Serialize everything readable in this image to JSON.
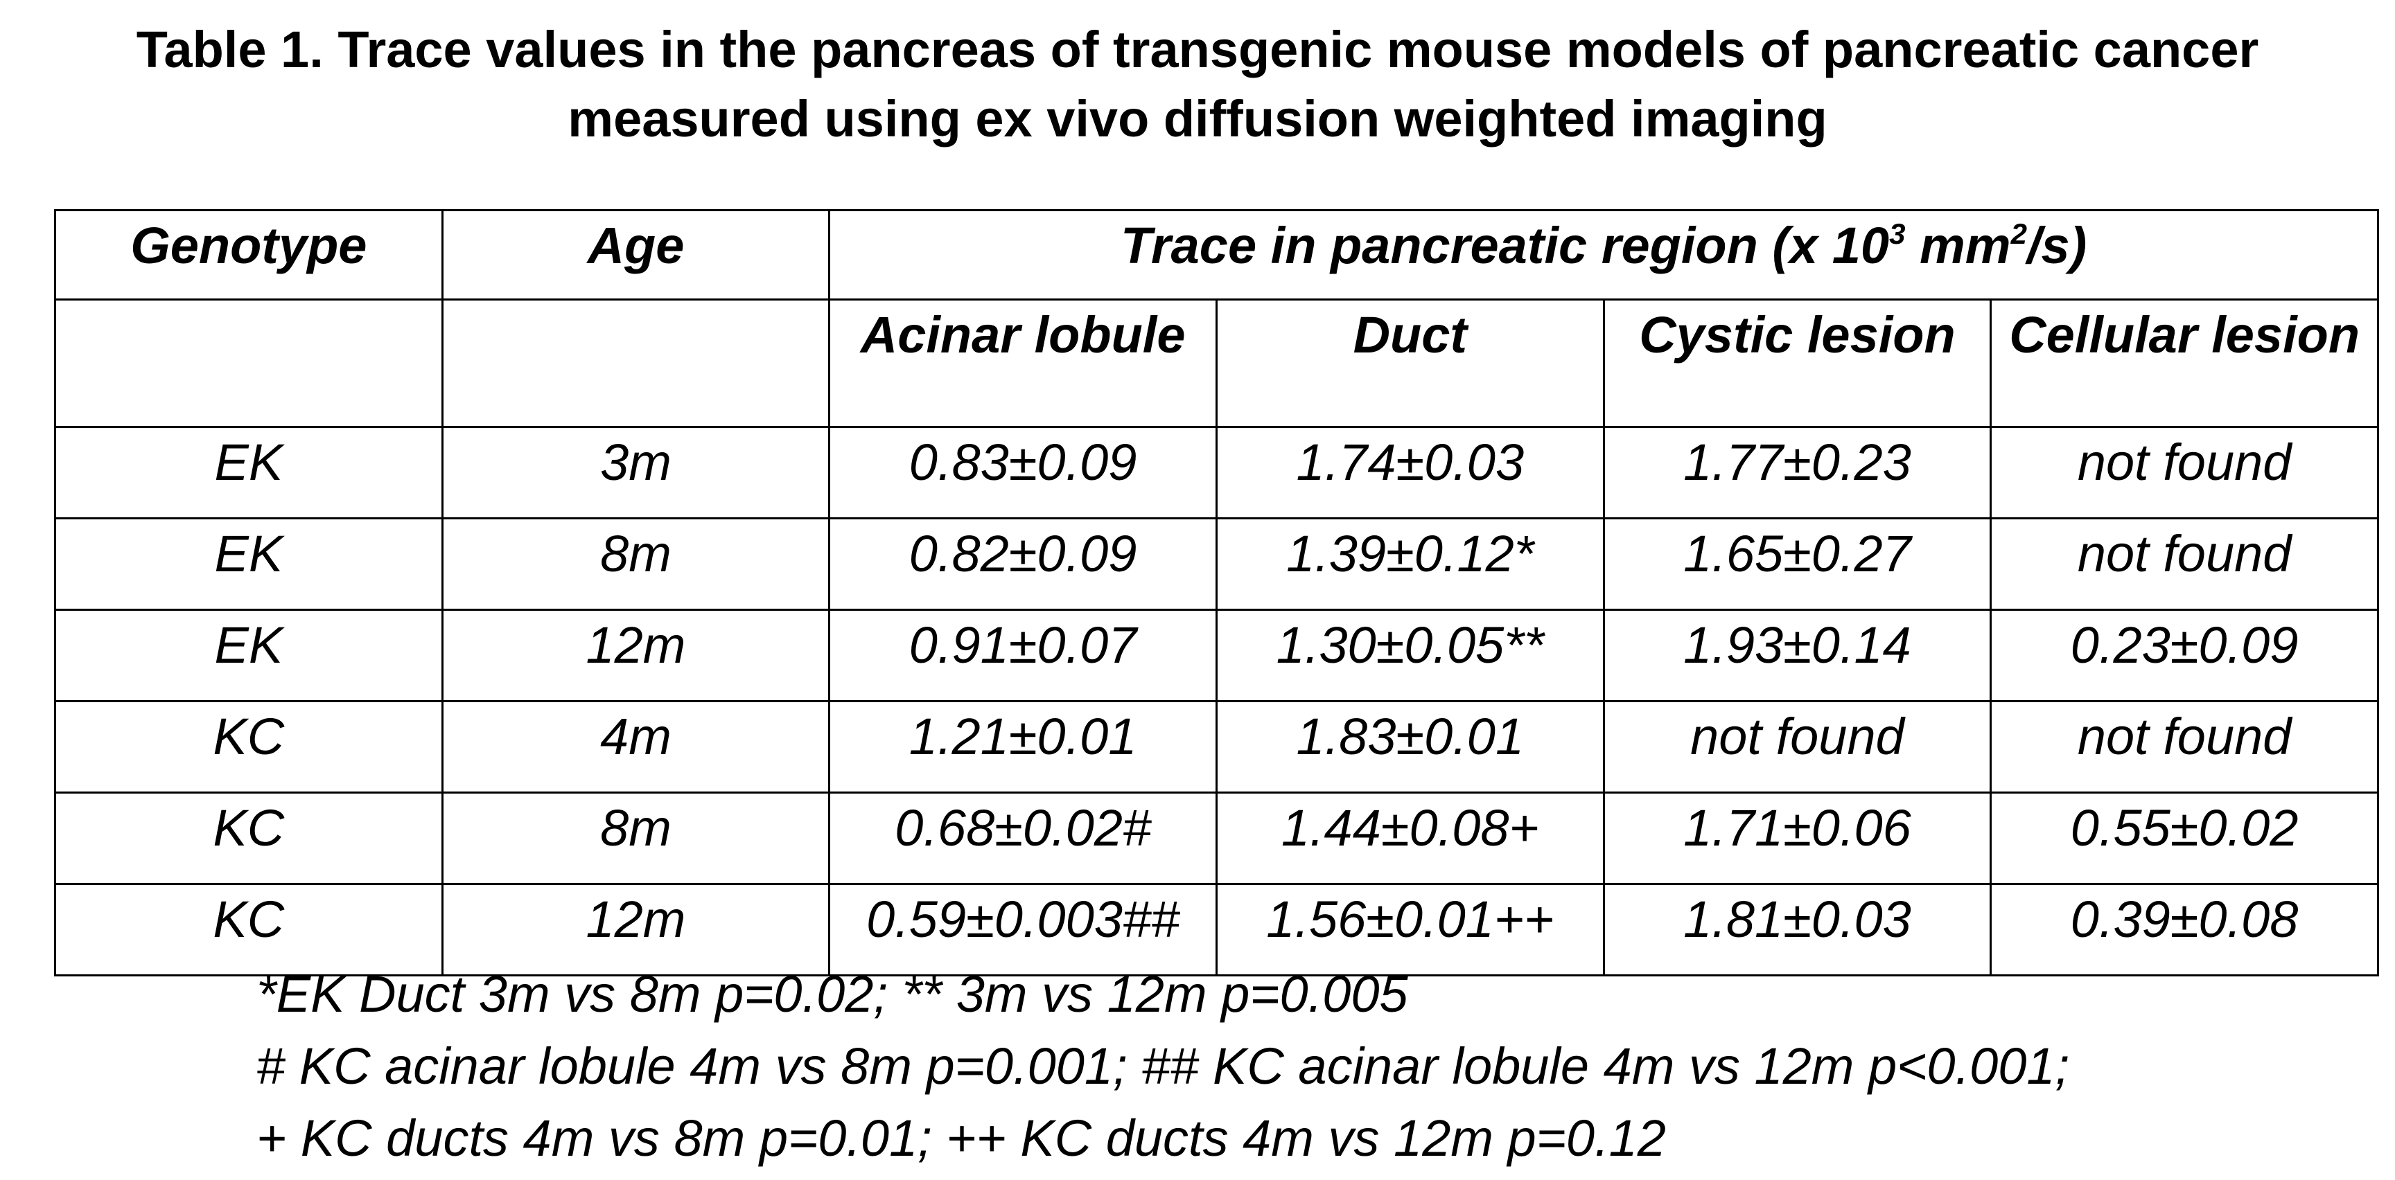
{
  "title": {
    "line1": "Table 1. Trace values in the pancreas of transgenic mouse models of pancreatic cancer",
    "line2": "measured using ex vivo diffusion weighted imaging"
  },
  "table": {
    "header": {
      "genotype": "Genotype",
      "age": "Age",
      "trace_prefix": "Trace in pancreatic region (x 10",
      "trace_sup1": "3",
      "trace_mid": " mm",
      "trace_sup2": "2",
      "trace_suffix": "/s)"
    },
    "subheaders": [
      "Acinar lobule",
      "Duct",
      "Cystic lesion",
      "Cellular lesion"
    ],
    "rows": [
      {
        "genotype": "EK",
        "age": "3m",
        "acinar": "0.83±0.09",
        "duct": "1.74±0.03",
        "cystic": "1.77±0.23",
        "cellular": "not found"
      },
      {
        "genotype": "EK",
        "age": "8m",
        "acinar": "0.82±0.09",
        "duct": "1.39±0.12*",
        "cystic": "1.65±0.27",
        "cellular": "not found"
      },
      {
        "genotype": "EK",
        "age": "12m",
        "acinar": "0.91±0.07",
        "duct": "1.30±0.05**",
        "cystic": "1.93±0.14",
        "cellular": "0.23±0.09"
      },
      {
        "genotype": "KC",
        "age": "4m",
        "acinar": "1.21±0.01",
        "duct": "1.83±0.01",
        "cystic": "not found",
        "cellular": "not found"
      },
      {
        "genotype": "KC",
        "age": "8m",
        "acinar": "0.68±0.02#",
        "duct": "1.44±0.08+",
        "cystic": "1.71±0.06",
        "cellular": "0.55±0.02"
      },
      {
        "genotype": "KC",
        "age": "12m",
        "acinar": "0.59±0.003##",
        "duct": "1.56±0.01++",
        "cystic": "1.81±0.03",
        "cellular": "0.39±0.08"
      }
    ]
  },
  "footnotes": [
    "*EK Duct 3m vs 8m p=0.02; ** 3m vs 12m p=0.005",
    "# KC acinar lobule 4m vs 8m p=0.001; ## KC acinar lobule 4m vs 12m p<0.001;",
    "+ KC ducts 4m vs 8m p=0.01; ++ KC ducts 4m vs 12m p=0.12"
  ]
}
